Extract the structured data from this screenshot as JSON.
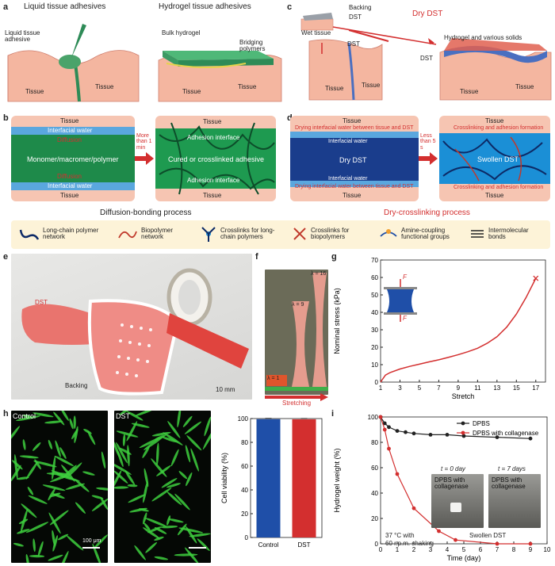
{
  "panels": {
    "a": "a",
    "b": "b",
    "c": "c",
    "d": "d",
    "e": "e",
    "f": "f",
    "g": "g",
    "h": "h",
    "i": "i"
  },
  "a": {
    "title_left": "Liquid tissue adhesives",
    "title_right": "Hydrogel tissue adhesives",
    "liquid_label": "Liquid tissue adhesive",
    "bulk_label": "Bulk hydrogel",
    "bridge_label": "Bridging polymers",
    "tissue": "Tissue"
  },
  "c": {
    "backing": "Backing",
    "dst": "DST",
    "wet": "Wet tissue",
    "title": "Dry DST",
    "hydrogel": "Hydrogel and various solids",
    "tissue": "Tissue"
  },
  "b": {
    "tissue": "Tissue",
    "water": "Interfacial water",
    "diffusion": "Diffusion",
    "monomer": "Monomer/macromer/polymer",
    "time": "More than 1 min",
    "adhesion": "Adhesion interface",
    "cured": "Cured or crosslinked adhesive",
    "caption": "Diffusion-bonding process"
  },
  "d": {
    "tissue": "Tissue",
    "drying": "Drying interfacial water between tissue and DST",
    "water": "Interfacial water",
    "dry": "Dry DST",
    "time": "Less than 5 s",
    "crosslinking": "Crosslinking and adhesion formation",
    "swollen": "Swollen DST",
    "caption": "Dry-crosslinking process"
  },
  "legend": [
    "Long-chain polymer network",
    "Biopolymer network",
    "Crosslinks for long-chain polymers",
    "Crosslinks for biopolymers",
    "Amine-coupling functional groups",
    "Intermolecular bonds"
  ],
  "e": {
    "dst": "DST",
    "backing": "Backing",
    "scale": "10 mm"
  },
  "f": {
    "l1": "λ = 1",
    "l9": "λ = 9",
    "l16": "λ = 16",
    "stretching": "Stretching"
  },
  "h": {
    "control": "Control",
    "dst": "DST",
    "scale": "100 μm"
  },
  "g": {
    "F": "F"
  },
  "i": {
    "t0": "t = 0 day",
    "t7": "t = 7 days",
    "dpbs_coll": "DPBS with collagenase",
    "swollen": "Swollen DST",
    "cond1": "37 °C with",
    "cond2": "60 r.p.m. shaking"
  },
  "colors": {
    "red": "#d32f2f",
    "blue": "#1f4fa8",
    "tissue": "#f4b6a0",
    "green": "#2e9d5a"
  },
  "chart_data": [
    {
      "type": "line",
      "xlabel": "Stretch",
      "ylabel": "Nominal stress (kPa)",
      "xlim": [
        1,
        18
      ],
      "ylim": [
        0,
        70
      ],
      "xticks": [
        1,
        3,
        5,
        7,
        9,
        11,
        13,
        15,
        17
      ],
      "yticks": [
        0,
        10,
        20,
        30,
        40,
        50,
        60,
        70
      ],
      "grid": false,
      "series": [
        {
          "x": [
            1,
            1.5,
            2,
            3,
            4,
            5,
            6,
            7,
            8,
            9,
            10,
            11,
            12,
            13,
            14,
            15,
            16,
            17
          ],
          "y": [
            0,
            4,
            5.5,
            7.5,
            9,
            10.3,
            11.6,
            12.8,
            14.2,
            15.7,
            17.4,
            19.4,
            22.3,
            26,
            31.5,
            39,
            48.5,
            59.5
          ]
        }
      ],
      "annotation": "break point at stretch 17"
    },
    {
      "type": "bar",
      "categories": [
        "Control",
        "DST"
      ],
      "ylabel": "Cell viability (%)",
      "ylim": [
        0,
        100
      ],
      "yticks": [
        0,
        20,
        40,
        60,
        80,
        100
      ],
      "values": [
        99.5,
        99.4
      ],
      "colors": [
        "#1f4fa8",
        "#d32f2f"
      ]
    },
    {
      "type": "line",
      "xlabel": "Time (day)",
      "ylabel": "Hydrogel weight (%)",
      "xlim": [
        0,
        10
      ],
      "ylim": [
        0,
        100
      ],
      "xticks": [
        0,
        1,
        2,
        3,
        4,
        5,
        6,
        7,
        8,
        9,
        10
      ],
      "yticks": [
        0,
        20,
        40,
        60,
        80,
        100
      ],
      "legend": "top-right",
      "series": [
        {
          "name": "DPBS",
          "x": [
            0,
            0.25,
            0.5,
            1,
            1.5,
            2,
            3,
            4,
            5,
            7,
            9
          ],
          "y": [
            100,
            95,
            92,
            89,
            88,
            87,
            86,
            86,
            85,
            84,
            83
          ],
          "color": "#222222"
        },
        {
          "name": "DPBS with collagenase",
          "x": [
            0,
            0.25,
            0.5,
            1,
            2,
            3.5,
            4.5,
            7,
            9
          ],
          "y": [
            100,
            90,
            75,
            55,
            28,
            10,
            3,
            0,
            0
          ],
          "color": "#d32f2f"
        }
      ]
    }
  ]
}
